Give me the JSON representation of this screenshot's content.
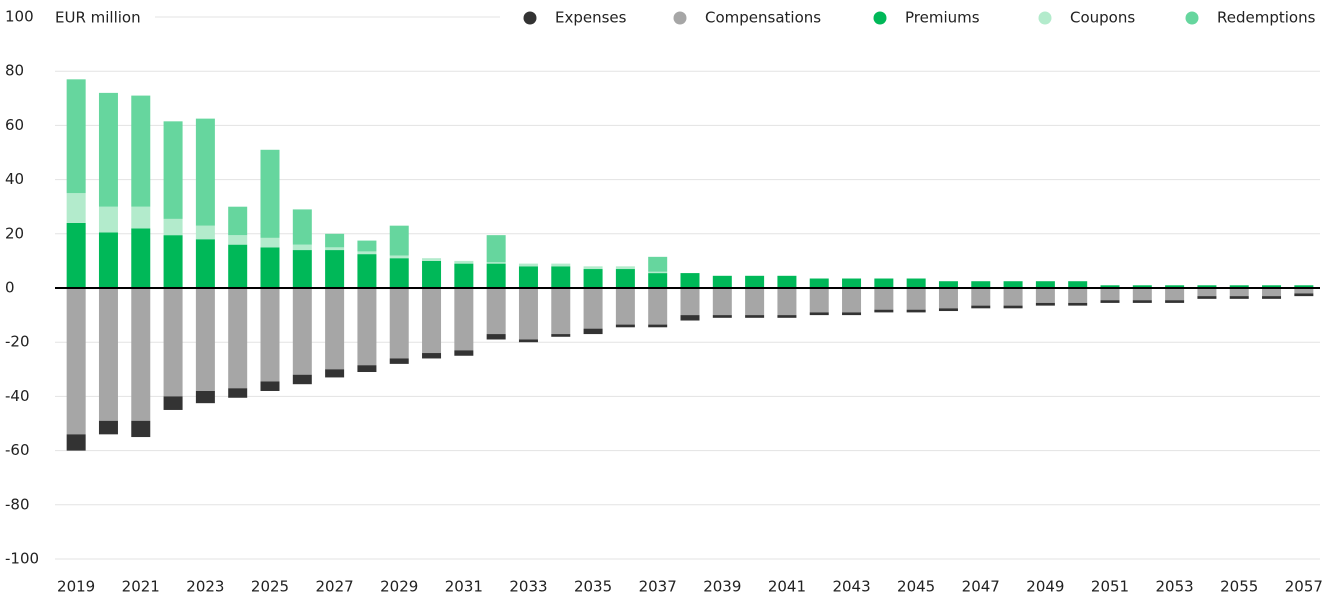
{
  "chart_data": {
    "type": "stacked_bar",
    "y_label": "EUR million",
    "categories": [
      "2019",
      null,
      "2021",
      null,
      "2023",
      null,
      "2025",
      null,
      "2027",
      null,
      "2029",
      null,
      "2031",
      null,
      "2033",
      null,
      "2035",
      null,
      "2037",
      null,
      "2039",
      null,
      "2041",
      null,
      "2043",
      null,
      "2045",
      null,
      "2047",
      null,
      "2049",
      null,
      "2051",
      null,
      "2053",
      null,
      "2055",
      null,
      "2057"
    ],
    "series": [
      {
        "name": "Expenses",
        "color": "#333333",
        "values": [
          -6,
          -5,
          -6,
          -5,
          -4.5,
          -3.5,
          -3.5,
          -3.5,
          -3,
          -2.5,
          -2,
          -2,
          -2,
          -2,
          -1,
          -1,
          -2,
          -1,
          -1,
          -2,
          -1,
          -1,
          -1,
          -1,
          -1,
          -1,
          -1,
          -1,
          -1,
          -1,
          -1,
          -1,
          -1,
          -1,
          -1,
          -1,
          -1,
          -1,
          -1
        ]
      },
      {
        "name": "Compensations",
        "color": "#a6a6a6",
        "values": [
          -54,
          -49,
          -49,
          -40,
          -38,
          -37,
          -34.5,
          -32,
          -30,
          -28.5,
          -26,
          -24,
          -23,
          -17,
          -19,
          -17,
          -15,
          -13.5,
          -13.5,
          -10,
          -10,
          -10,
          -10,
          -9,
          -9,
          -8,
          -8,
          -7.5,
          -6.5,
          -6.5,
          -5.5,
          -5.5,
          -4.5,
          -4.5,
          -4.5,
          -3,
          -3,
          -3,
          -2
        ]
      },
      {
        "name": "Premiums",
        "color": "#00b858",
        "values": [
          24,
          20.5,
          22,
          19.5,
          18,
          16,
          15,
          14,
          14,
          12.5,
          11,
          10,
          9,
          9,
          8,
          8,
          7,
          7,
          5.5,
          5.5,
          4.5,
          4.5,
          4.5,
          3.5,
          3.5,
          3.5,
          3.5,
          2.5,
          2.5,
          2.5,
          2.5,
          2.5,
          1,
          1,
          1,
          1,
          1,
          1,
          1
        ]
      },
      {
        "name": "Coupons",
        "color": "#b3ebcc",
        "values": [
          11,
          9.5,
          8,
          6,
          5,
          3.5,
          3.5,
          2,
          1,
          1,
          1,
          1,
          1,
          0.5,
          1,
          1,
          1,
          1,
          0.5,
          0,
          0,
          0,
          0,
          0,
          0,
          0,
          0,
          0,
          0,
          0,
          0,
          0,
          0,
          0,
          0,
          0,
          0,
          0,
          0
        ]
      },
      {
        "name": "Redemptions",
        "color": "#66d69e",
        "values": [
          42,
          42,
          41,
          36,
          39.5,
          10.5,
          32.5,
          13,
          5,
          4,
          11,
          0,
          0,
          10,
          0,
          0,
          0,
          0,
          5.5,
          0,
          0,
          0,
          0,
          0,
          0,
          0,
          0,
          0,
          0,
          0,
          0,
          0,
          0,
          0,
          0,
          0,
          0,
          0,
          0
        ]
      }
    ],
    "ylim": [
      -100,
      100
    ],
    "yticks": [
      -100,
      -80,
      -60,
      -40,
      -20,
      0,
      20,
      40,
      60,
      80,
      100
    ],
    "grid": true,
    "legend": "top-right"
  }
}
